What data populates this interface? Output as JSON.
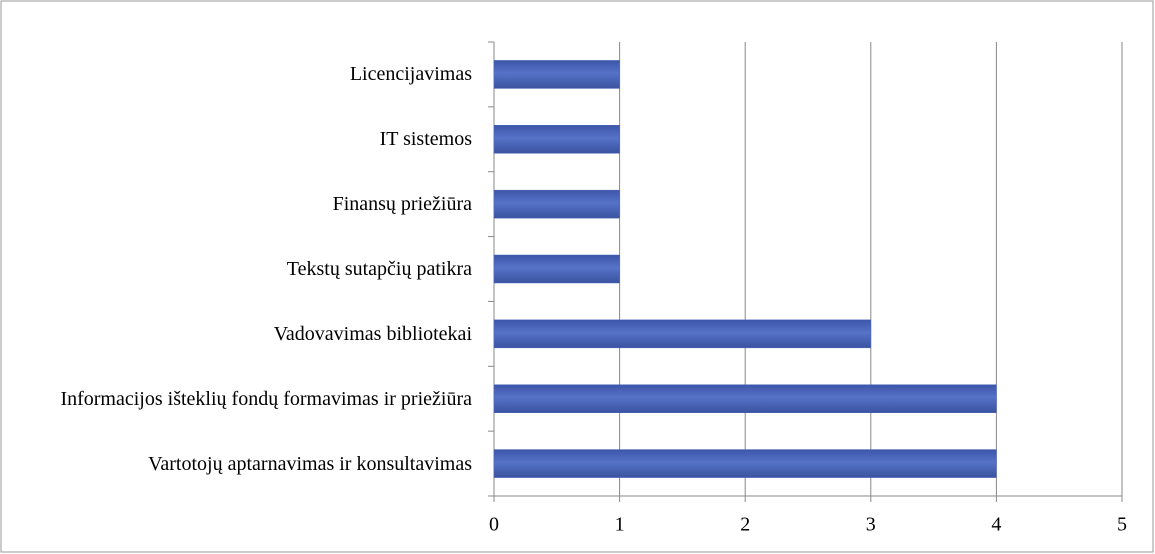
{
  "chart_data": {
    "type": "bar",
    "orientation": "horizontal",
    "categories": [
      "Licencijavimas",
      "IT sistemos",
      "Finansų priežiūra",
      "Tekstų sutapčių patikra",
      "Vadovavimas bibliotekai",
      "Informacijos išteklių fondų formavimas ir priežiūra",
      "Vartotojų aptarnavimas ir konsultavimas"
    ],
    "values": [
      1,
      1,
      1,
      1,
      3,
      4,
      4
    ],
    "color": "#4a66bd",
    "xlim": [
      0,
      5
    ],
    "xticks": [
      0,
      1,
      2,
      3,
      4,
      5
    ],
    "grid": true
  }
}
